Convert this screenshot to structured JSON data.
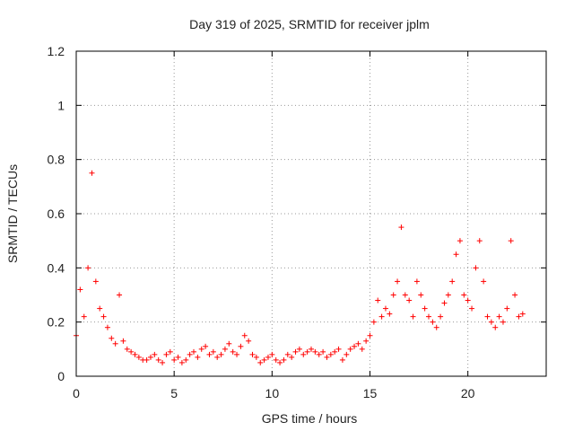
{
  "chart_data": {
    "type": "scatter",
    "title": "Day 319 of 2025, SRMTID for receiver jplm",
    "xlabel": "GPS time / hours",
    "ylabel": "SRMTID / TECUs",
    "xlim": [
      0,
      24
    ],
    "ylim": [
      0,
      1.2
    ],
    "x_ticks": [
      0,
      5,
      10,
      15,
      20
    ],
    "x_tick_labels": [
      "0",
      "5",
      "10",
      "15",
      "20"
    ],
    "y_ticks": [
      0,
      0.2,
      0.4,
      0.6,
      0.8,
      1.0,
      1.2
    ],
    "y_tick_labels": [
      "0",
      "0.2",
      "0.4",
      "0.6",
      "0.8",
      "1",
      "1.2"
    ],
    "grid": true,
    "marker": "plus",
    "color": "#ff0000",
    "series": [
      {
        "name": "jplm",
        "x": [
          0.0,
          0.2,
          0.4,
          0.6,
          0.8,
          1.0,
          1.2,
          1.4,
          1.6,
          1.8,
          2.0,
          2.2,
          2.4,
          2.6,
          2.8,
          3.0,
          3.2,
          3.4,
          3.6,
          3.8,
          4.0,
          4.2,
          4.4,
          4.6,
          4.8,
          5.0,
          5.2,
          5.4,
          5.6,
          5.8,
          6.0,
          6.2,
          6.4,
          6.6,
          6.8,
          7.0,
          7.2,
          7.4,
          7.6,
          7.8,
          8.0,
          8.2,
          8.4,
          8.6,
          8.8,
          9.0,
          9.2,
          9.4,
          9.6,
          9.8,
          10.0,
          10.2,
          10.4,
          10.6,
          10.8,
          11.0,
          11.2,
          11.4,
          11.6,
          11.8,
          12.0,
          12.2,
          12.4,
          12.6,
          12.8,
          13.0,
          13.2,
          13.4,
          13.6,
          13.8,
          14.0,
          14.2,
          14.4,
          14.6,
          14.8,
          15.0,
          15.2,
          15.4,
          15.6,
          15.8,
          16.0,
          16.2,
          16.4,
          16.6,
          16.8,
          17.0,
          17.2,
          17.4,
          17.6,
          17.8,
          18.0,
          18.2,
          18.4,
          18.6,
          18.8,
          19.0,
          19.2,
          19.4,
          19.6,
          19.8,
          20.0,
          20.2,
          20.4,
          20.6,
          20.8,
          21.0,
          21.2,
          21.4,
          21.6,
          21.8,
          22.0,
          22.2,
          22.4,
          22.6,
          22.8
        ],
        "values": [
          0.15,
          0.32,
          0.22,
          0.4,
          0.75,
          0.35,
          0.25,
          0.22,
          0.18,
          0.14,
          0.12,
          0.3,
          0.13,
          0.1,
          0.09,
          0.08,
          0.07,
          0.06,
          0.06,
          0.07,
          0.08,
          0.06,
          0.05,
          0.08,
          0.09,
          0.06,
          0.07,
          0.05,
          0.06,
          0.08,
          0.09,
          0.07,
          0.1,
          0.11,
          0.08,
          0.09,
          0.07,
          0.08,
          0.1,
          0.12,
          0.09,
          0.08,
          0.11,
          0.15,
          0.13,
          0.08,
          0.07,
          0.05,
          0.06,
          0.07,
          0.08,
          0.06,
          0.05,
          0.06,
          0.08,
          0.07,
          0.09,
          0.1,
          0.08,
          0.09,
          0.1,
          0.09,
          0.08,
          0.09,
          0.07,
          0.08,
          0.09,
          0.1,
          0.06,
          0.08,
          0.1,
          0.11,
          0.12,
          0.1,
          0.13,
          0.15,
          0.2,
          0.28,
          0.22,
          0.25,
          0.23,
          0.3,
          0.35,
          0.55,
          0.3,
          0.28,
          0.22,
          0.35,
          0.3,
          0.25,
          0.22,
          0.2,
          0.18,
          0.22,
          0.27,
          0.3,
          0.35,
          0.45,
          0.5,
          0.3,
          0.28,
          0.25,
          0.4,
          0.5,
          0.35,
          0.22,
          0.2,
          0.18,
          0.22,
          0.2,
          0.25,
          0.5,
          0.3,
          0.22,
          0.23
        ]
      }
    ]
  }
}
